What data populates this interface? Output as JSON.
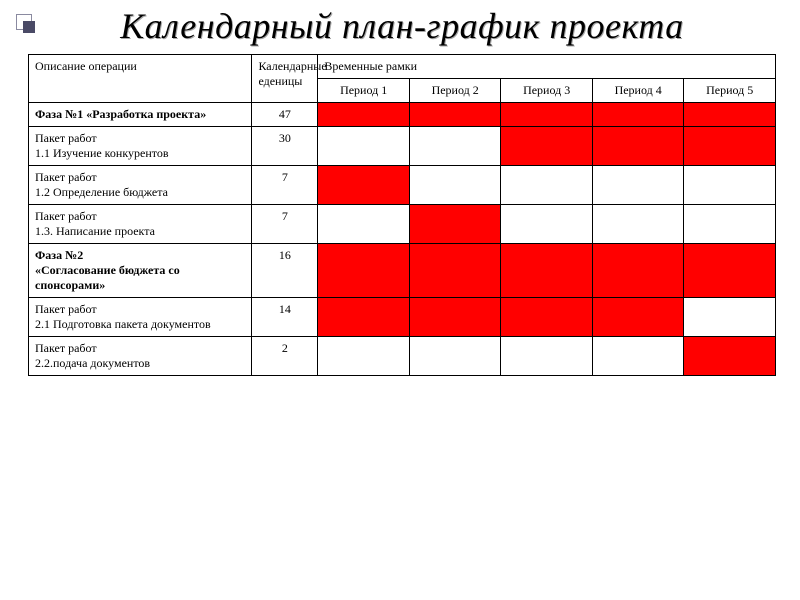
{
  "title": "Календарный план-график проекта",
  "headers": {
    "description": "Описание операции",
    "units": "Календарные еденицы",
    "timeframe": "Временные рамки",
    "periods": [
      "Период 1",
      "Период 2",
      "Период 3",
      "Период 4",
      "Период 5"
    ]
  },
  "fill_color": "#ff0000",
  "rows": [
    {
      "desc": "Фаза №1 «Разработка проекта»",
      "units": "47",
      "bold": true,
      "fills": [
        true,
        true,
        true,
        true,
        true
      ]
    },
    {
      "desc": "Пакет работ\n1.1 Изучение конкурентов",
      "units": "30",
      "bold": false,
      "fills": [
        false,
        false,
        true,
        true,
        true
      ]
    },
    {
      "desc": "Пакет работ\n1.2 Определение бюджета",
      "units": "7",
      "bold": false,
      "fills": [
        true,
        false,
        false,
        false,
        false
      ]
    },
    {
      "desc": "Пакет работ\n1.3. Написание проекта",
      "units": "7",
      "bold": false,
      "fills": [
        false,
        true,
        false,
        false,
        false
      ]
    },
    {
      "desc": "Фаза №2\n«Согласование бюджета со спонсорами»",
      "units": "16",
      "bold": true,
      "fills": [
        true,
        true,
        true,
        true,
        true
      ]
    },
    {
      "desc": "Пакет работ\n2.1 Подготовка пакета документов",
      "units": "14",
      "bold": false,
      "fills": [
        true,
        true,
        true,
        true,
        false
      ]
    },
    {
      "desc": "Пакет работ\n2.2.подача документов",
      "units": "2",
      "bold": false,
      "fills": [
        false,
        false,
        false,
        false,
        true
      ]
    }
  ]
}
